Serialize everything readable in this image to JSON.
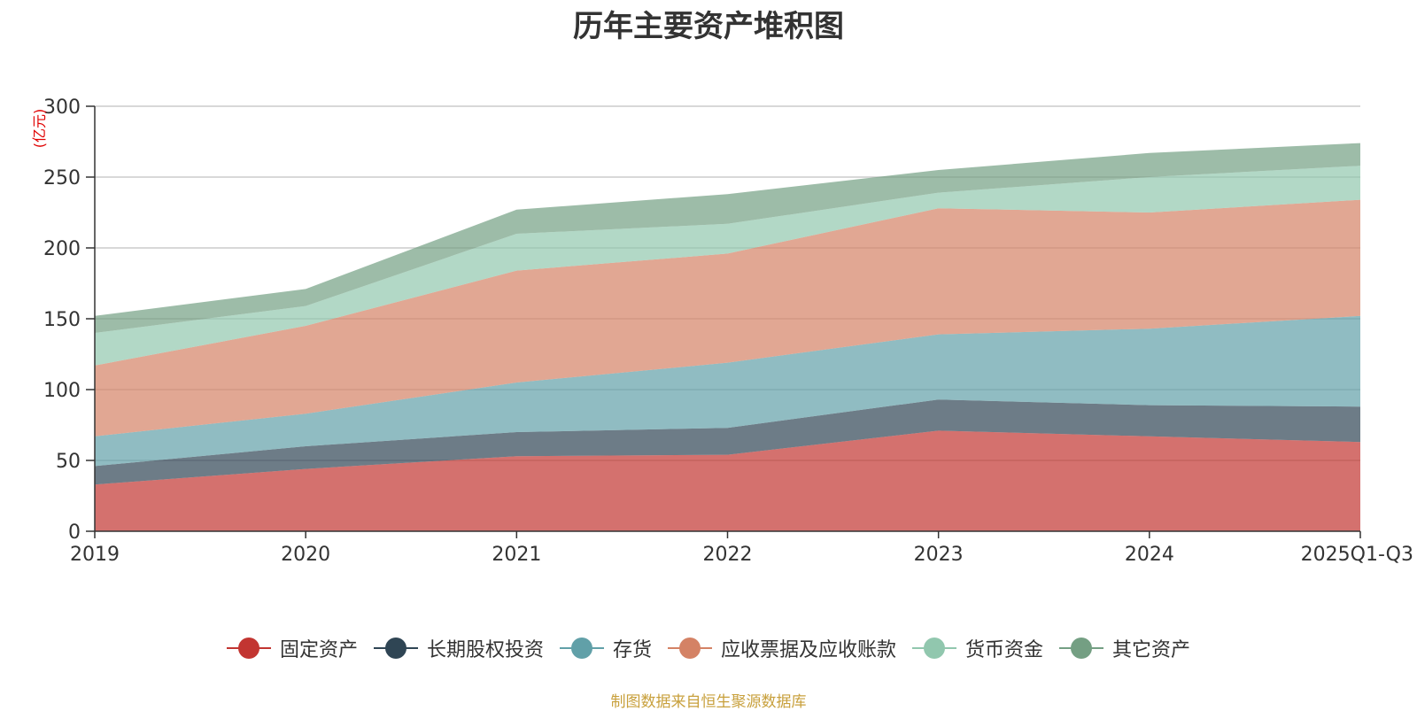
{
  "chart_data": {
    "type": "area",
    "stacked": true,
    "title": "历年主要资产堆积图",
    "unit_label": "(亿元)",
    "categories": [
      "2019",
      "2020",
      "2021",
      "2022",
      "2023",
      "2024",
      "2025Q1-Q3"
    ],
    "ylim": [
      0,
      300
    ],
    "yticks": [
      0,
      50,
      100,
      150,
      200,
      250,
      300
    ],
    "grid": true,
    "legend_position": "bottom",
    "series": [
      {
        "name": "固定资产",
        "color": "#c23531",
        "values": [
          33,
          44,
          53,
          54,
          71,
          67,
          63
        ]
      },
      {
        "name": "长期股权投资",
        "color": "#2f4554",
        "values": [
          13,
          16,
          17,
          19,
          22,
          22,
          25
        ]
      },
      {
        "name": "存货",
        "color": "#61a0a8",
        "values": [
          21,
          23,
          35,
          46,
          46,
          54,
          64
        ]
      },
      {
        "name": "应收票据及应收账款",
        "color": "#d48265",
        "values": [
          50,
          62,
          79,
          77,
          89,
          82,
          82
        ]
      },
      {
        "name": "货币资金",
        "color": "#91c7ae",
        "values": [
          23,
          14,
          26,
          21,
          11,
          25,
          24
        ]
      },
      {
        "name": "其它资产",
        "color": "#749f83",
        "values": [
          12,
          12,
          17,
          21,
          16,
          17,
          16
        ]
      }
    ],
    "source": "制图数据来自恒生聚源数据库"
  }
}
